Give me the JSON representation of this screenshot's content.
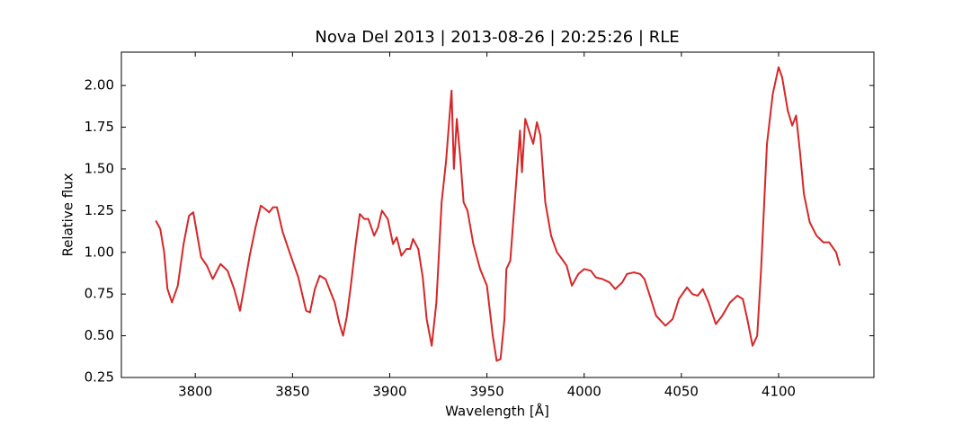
{
  "chart_data": {
    "type": "line",
    "title": "Nova Del 2013 | 2013-08-26 | 20:25:26 | RLE",
    "xlabel": "Wavelength [Å]",
    "ylabel": "Relative flux",
    "color": "#d62728",
    "x": [
      3779.7,
      3782,
      3784,
      3785.7,
      3788,
      3791,
      3794,
      3796.8,
      3799,
      3803,
      3806,
      3809,
      3813,
      3816.6,
      3820,
      3823,
      3825,
      3828,
      3831,
      3833.7,
      3836,
      3838,
      3840,
      3842,
      3845,
      3848.5,
      3853,
      3857,
      3859,
      3861.5,
      3864,
      3867,
      3871.7,
      3874,
      3876,
      3878,
      3880,
      3882.5,
      3884.6,
      3887,
      3889,
      3892,
      3894,
      3896,
      3899,
      3901.7,
      3903.6,
      3906,
      3908.6,
      3910.5,
      3912,
      3914.7,
      3917,
      3919,
      3921.6,
      3924,
      3926.7,
      3929,
      3931.8,
      3933,
      3934.5,
      3936.4,
      3938,
      3940,
      3943,
      3946.5,
      3950,
      3953,
      3955,
      3957,
      3959,
      3960,
      3962,
      3964.6,
      3967,
      3968,
      3969.7,
      3972.4,
      3973.8,
      3975.7,
      3977.5,
      3980,
      3983,
      3986,
      3988.6,
      3991,
      3993.7,
      3997,
      4000,
      4003.4,
      4006,
      4009.4,
      4013,
      4016,
      4019.6,
      4022,
      4025.6,
      4028.8,
      4031,
      4033.5,
      4037,
      4041.8,
      4045.5,
      4048.7,
      4052.9,
      4055.6,
      4058.4,
      4061,
      4064,
      4067.7,
      4071,
      4075,
      4078.8,
      4081.6,
      4083.9,
      4086.6,
      4089,
      4091,
      4094,
      4097,
      4100,
      4101.8,
      4104.7,
      4107,
      4109,
      4111,
      4113,
      4116,
      4119.5,
      4123,
      4126,
      4129.6,
      4131.5
    ],
    "values": [
      1.19,
      1.14,
      1.0,
      0.78,
      0.7,
      0.8,
      1.05,
      1.22,
      1.24,
      0.97,
      0.92,
      0.84,
      0.93,
      0.89,
      0.78,
      0.65,
      0.78,
      0.98,
      1.15,
      1.28,
      1.26,
      1.24,
      1.27,
      1.27,
      1.12,
      1.0,
      0.85,
      0.65,
      0.64,
      0.78,
      0.86,
      0.84,
      0.7,
      0.58,
      0.5,
      0.62,
      0.8,
      1.05,
      1.23,
      1.2,
      1.2,
      1.1,
      1.15,
      1.25,
      1.2,
      1.05,
      1.09,
      0.98,
      1.02,
      1.02,
      1.08,
      1.02,
      0.85,
      0.6,
      0.44,
      0.7,
      1.3,
      1.55,
      1.97,
      1.5,
      1.8,
      1.55,
      1.3,
      1.25,
      1.05,
      0.9,
      0.8,
      0.5,
      0.35,
      0.36,
      0.6,
      0.9,
      0.95,
      1.35,
      1.73,
      1.48,
      1.8,
      1.7,
      1.65,
      1.78,
      1.7,
      1.3,
      1.1,
      1.0,
      0.96,
      0.92,
      0.8,
      0.87,
      0.9,
      0.89,
      0.85,
      0.84,
      0.82,
      0.78,
      0.82,
      0.87,
      0.88,
      0.87,
      0.84,
      0.75,
      0.62,
      0.56,
      0.6,
      0.72,
      0.79,
      0.75,
      0.74,
      0.78,
      0.7,
      0.57,
      0.62,
      0.7,
      0.74,
      0.72,
      0.6,
      0.44,
      0.5,
      0.9,
      1.65,
      1.95,
      2.11,
      2.05,
      1.85,
      1.76,
      1.82,
      1.6,
      1.35,
      1.18,
      1.1,
      1.06,
      1.06,
      1.0,
      0.92
    ],
    "xlim": [
      3762,
      4149
    ],
    "ylim": [
      0.25,
      2.2
    ],
    "xticks": [
      3800,
      3850,
      3900,
      3950,
      4000,
      4050,
      4100
    ],
    "yticks": [
      0.25,
      {
        "value": 0.5,
        "label": "0.50"
      },
      0.75,
      {
        "value": 1,
        "label": "1.00"
      },
      1.25,
      {
        "value": 1.5,
        "label": "1.50"
      },
      1.75,
      {
        "value": 2,
        "label": "2.00"
      }
    ]
  }
}
